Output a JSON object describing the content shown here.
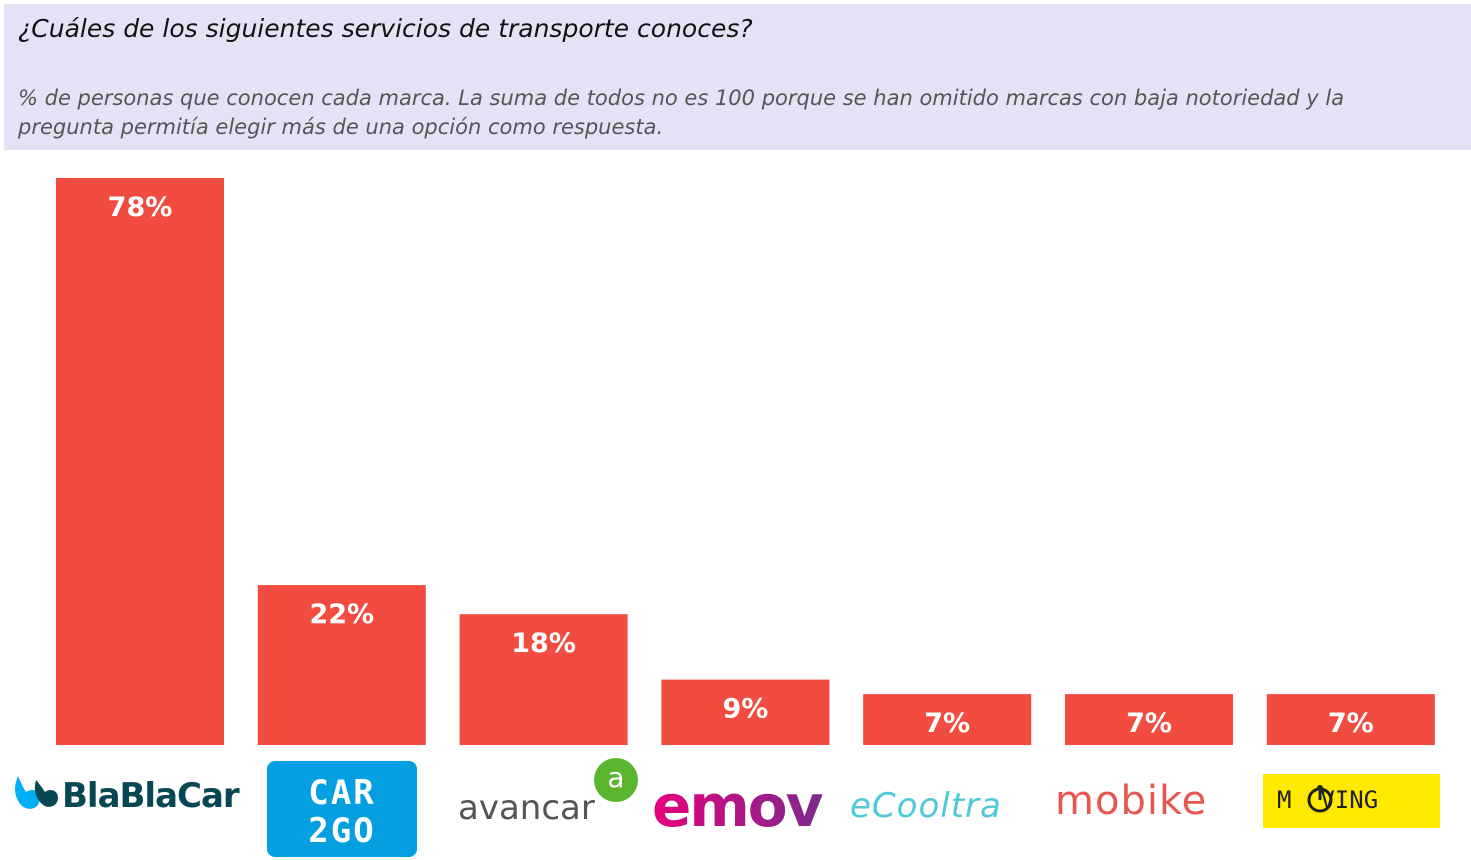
{
  "header": {
    "title": "¿Cuáles de los siguientes servicios de transporte conoces?",
    "subtitle": "% de personas que conocen cada marca. La suma de todos no es 100 porque se han omitido marcas con baja notoriedad y la pregunta permitía elegir más de una opción como respuesta."
  },
  "colors": {
    "bar": "#f24b3f",
    "header_bg": "#e6e1f5",
    "bar_label": "#ffffff"
  },
  "chart_data": {
    "type": "bar",
    "title": "¿Cuáles de los siguientes servicios de transporte conoces?",
    "subtitle": "% de personas que conocen cada marca. La suma de todos no es 100 porque se han omitido marcas con baja notoriedad y la pregunta permitía elegir más de una opción como respuesta.",
    "categories": [
      "BlaBlaCar",
      "CAR2GO",
      "avancar",
      "emov",
      "eCooltra",
      "mobike",
      "MOVING"
    ],
    "values": [
      78,
      22,
      18,
      9,
      7,
      7,
      7
    ],
    "value_labels": [
      "78%",
      "22%",
      "18%",
      "9%",
      "7%",
      "7%",
      "7%"
    ],
    "unit": "%",
    "ylim": [
      0,
      78
    ],
    "grid": false,
    "legend": "none"
  },
  "logos": {
    "blablacar": {
      "text": "BlaBlaCar",
      "color": "#054752",
      "icon_color": "#00aff5",
      "icon": "blablacar-drop-icon"
    },
    "car2go": {
      "text_line1": "CAR",
      "text_line2": "2GO",
      "bg": "#039fe0",
      "color": "#ffffff"
    },
    "avancar": {
      "text": "avancar",
      "color": "#555555",
      "badge_text": "a",
      "badge_color": "#5bb531",
      "icon": "avancar-badge-icon"
    },
    "emov": {
      "text": "emov",
      "gradient_from": "#e6007e",
      "gradient_to": "#7b2a8c"
    },
    "ecooltra": {
      "text": "eCooltra",
      "color": "#4fc8d8"
    },
    "mobike": {
      "text": "mobike",
      "color": "#e8574f"
    },
    "moving": {
      "text": "M  VING",
      "bg": "#ffea00",
      "color": "#222222",
      "icon": "wheelchair-icon"
    }
  }
}
